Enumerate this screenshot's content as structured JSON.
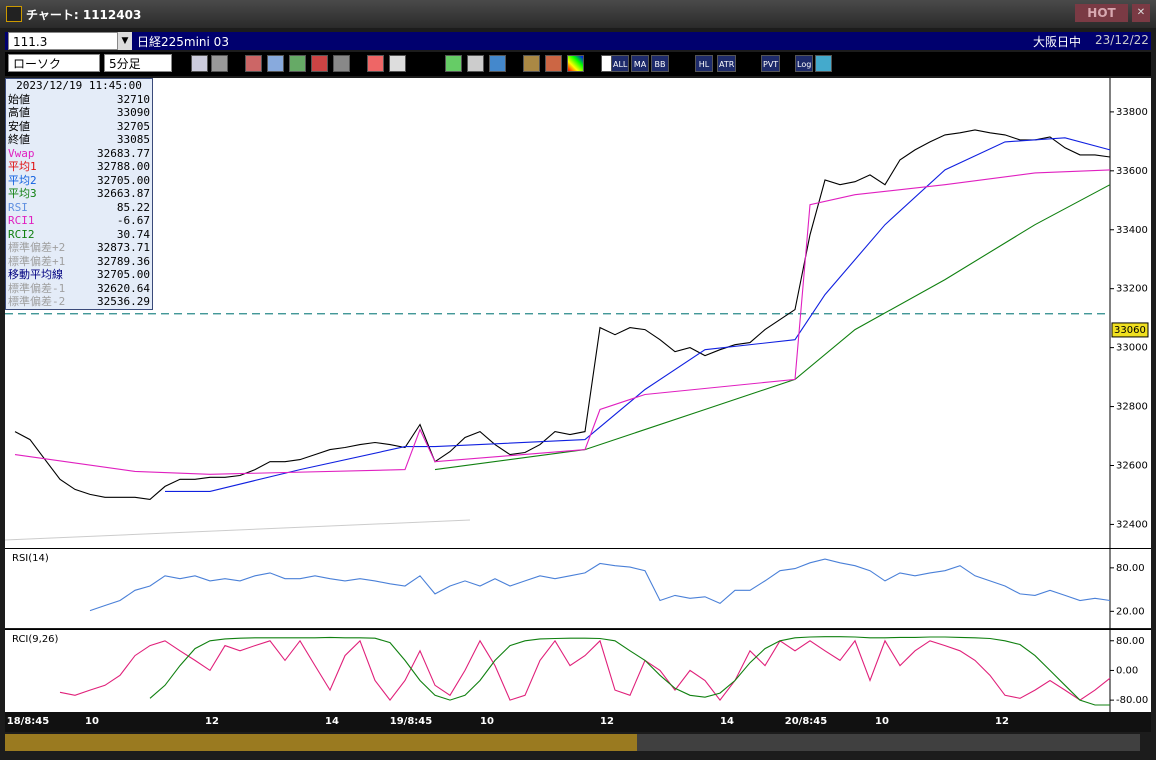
{
  "window": {
    "title": "チャート: 1112403",
    "badge": "HOT",
    "close": "✕"
  },
  "toolbar": {
    "code": "111.3",
    "instrument": "日経225mini 03",
    "session": "大阪日中",
    "date": "23/12/22",
    "chart_style": "ローソク",
    "interval": "5分足",
    "buttons": [
      "ALL",
      "MA",
      "BB",
      "HL",
      "ATR",
      "PVT",
      "Log"
    ]
  },
  "info_panel": {
    "timestamp": "2023/12/19  11:45:00",
    "rows": [
      {
        "label": "始値",
        "value": "32710",
        "color": "#000000"
      },
      {
        "label": "高値",
        "value": "33090",
        "color": "#000000"
      },
      {
        "label": "安値",
        "value": "32705",
        "color": "#000000"
      },
      {
        "label": "終値",
        "value": "33085",
        "color": "#000000"
      },
      {
        "label": "Vwap",
        "value": "32683.77",
        "color": "#e020c0"
      },
      {
        "label": "平均1",
        "value": "32788.00",
        "color": "#e01010"
      },
      {
        "label": "平均2",
        "value": "32705.00",
        "color": "#1060e0"
      },
      {
        "label": "平均3",
        "value": "32663.87",
        "color": "#108010"
      },
      {
        "label": "RSI",
        "value": "85.22",
        "color": "#6090e0"
      },
      {
        "label": "RCI1",
        "value": "-6.67",
        "color": "#e020c0"
      },
      {
        "label": "RCI2",
        "value": "30.74",
        "color": "#108010"
      },
      {
        "label": "標準偏差+2",
        "value": "32873.71",
        "color": "#a0a0a0"
      },
      {
        "label": "標準偏差+1",
        "value": "32789.36",
        "color": "#a0a0a0"
      },
      {
        "label": "移動平均線",
        "value": "32705.00",
        "color": "#000080"
      },
      {
        "label": "標準偏差-1",
        "value": "32620.64",
        "color": "#a0a0a0"
      },
      {
        "label": "標準偏差-2",
        "value": "32536.29",
        "color": "#a0a0a0"
      }
    ]
  },
  "x_axis_labels": [
    "18/8:45",
    "10",
    "12",
    "14",
    "19/8:45",
    "10",
    "12",
    "14",
    "20/8:45",
    "10",
    "12"
  ],
  "chart_data": [
    {
      "type": "line",
      "ylim": [
        32320,
        33915
      ],
      "yticks": [
        32400,
        32600,
        32800,
        33000,
        33200,
        33400,
        33600,
        33800
      ],
      "current_price": 33060,
      "reference_line": 33115,
      "series": [
        {
          "color": "#000000",
          "values": [
            32715,
            32688,
            32620,
            32553,
            32519,
            32502,
            32492,
            32492,
            32492,
            32485,
            32529,
            32553,
            32553,
            32560,
            32560,
            32566,
            32586,
            32613,
            32613,
            32620,
            32637,
            32654,
            32661,
            32671,
            32678,
            32671,
            32661,
            32739,
            32613,
            32647,
            32695,
            32715,
            32671,
            32637,
            32644,
            32671,
            32715,
            32705,
            32715,
            33068,
            33044,
            33068,
            33061,
            33027,
            32986,
            33000,
            32973,
            32993,
            33010,
            33017,
            33061,
            33095,
            33129,
            33383,
            33569,
            33553,
            33563,
            33586,
            33553,
            33637,
            33671,
            33698,
            33722,
            33729,
            33739,
            33729,
            33722,
            33705,
            33705,
            33715,
            33678,
            33654,
            33654,
            33647
          ]
        },
        {
          "color": "#1020e0",
          "x": [
            10,
            13,
            19,
            26,
            28,
            38,
            42,
            46,
            52,
            54,
            58,
            62,
            66,
            70,
            73
          ],
          "values": [
            32512,
            32512,
            32586,
            32664,
            32664,
            32688,
            32858,
            32993,
            33027,
            33180,
            33417,
            33603,
            33698,
            33712,
            33671
          ]
        },
        {
          "color": "#108010",
          "x": [
            28,
            38,
            46,
            52,
            56,
            62,
            68,
            73
          ],
          "values": [
            32586,
            32654,
            32790,
            32892,
            33061,
            33231,
            33417,
            33553
          ]
        },
        {
          "color": "#e020c0",
          "x": [
            0,
            8,
            13,
            26,
            27,
            28,
            38,
            39,
            42,
            52,
            53,
            56,
            62,
            68,
            73
          ],
          "values": [
            32637,
            32580,
            32570,
            32586,
            32722,
            32613,
            32654,
            32790,
            32841,
            32892,
            33485,
            33519,
            33553,
            33593,
            33603
          ]
        }
      ]
    },
    {
      "type": "line",
      "title": "RSI(14)",
      "ylim": [
        -3,
        106
      ],
      "yticks": [
        {
          "value": 20,
          "label": "20.00"
        },
        {
          "value": 80,
          "label": "80.00"
        }
      ],
      "series": [
        {
          "color": "#4a80d8",
          "values": [
            null,
            null,
            null,
            null,
            null,
            21,
            28,
            35,
            49,
            55,
            69,
            65,
            69,
            62,
            65,
            62,
            69,
            73,
            65,
            65,
            69,
            65,
            62,
            65,
            62,
            58,
            55,
            69,
            44,
            55,
            62,
            55,
            65,
            55,
            62,
            69,
            65,
            69,
            73,
            86,
            83,
            81,
            76,
            35,
            42,
            38,
            40,
            31,
            49,
            49,
            62,
            76,
            79,
            87,
            92,
            87,
            83,
            76,
            62,
            73,
            69,
            73,
            76,
            83,
            69,
            62,
            55,
            44,
            42,
            49,
            42,
            35,
            38,
            35
          ]
        }
      ]
    },
    {
      "type": "line",
      "title": "RCI(9,26)",
      "ylim": [
        -112,
        109
      ],
      "yticks": [
        {
          "value": -80,
          "label": "-80.00"
        },
        {
          "value": 0,
          "label": "0.00"
        },
        {
          "value": 80,
          "label": "80.00"
        }
      ],
      "series": [
        {
          "color": "#e0207a",
          "values": [
            null,
            null,
            null,
            -59,
            -67,
            -53,
            -40,
            -13,
            40,
            67,
            80,
            53,
            27,
            0,
            67,
            53,
            67,
            80,
            27,
            80,
            13,
            -53,
            40,
            80,
            -27,
            -80,
            -27,
            53,
            -40,
            -67,
            0,
            80,
            13,
            -80,
            -67,
            27,
            80,
            13,
            40,
            80,
            -53,
            -67,
            27,
            0,
            -53,
            0,
            -27,
            -80,
            -27,
            53,
            13,
            80,
            53,
            80,
            53,
            27,
            80,
            -27,
            80,
            13,
            53,
            80,
            67,
            53,
            27,
            -13,
            -67,
            -75,
            -53,
            -27,
            -53,
            -80,
            -53,
            -21
          ]
        },
        {
          "color": "#108010",
          "values": [
            null,
            null,
            null,
            null,
            null,
            null,
            null,
            null,
            null,
            -75,
            -40,
            13,
            59,
            80,
            85,
            87,
            88,
            88,
            88,
            88,
            88,
            89,
            88,
            88,
            87,
            75,
            27,
            -27,
            -67,
            -80,
            -67,
            -27,
            27,
            67,
            80,
            85,
            86,
            87,
            87,
            86,
            80,
            53,
            27,
            -13,
            -48,
            -67,
            -72,
            -61,
            -27,
            21,
            59,
            80,
            88,
            90,
            91,
            91,
            90,
            88,
            88,
            89,
            89,
            90,
            90,
            89,
            88,
            86,
            80,
            70,
            40,
            0,
            -40,
            -80,
            -93,
            -93
          ]
        }
      ]
    }
  ]
}
